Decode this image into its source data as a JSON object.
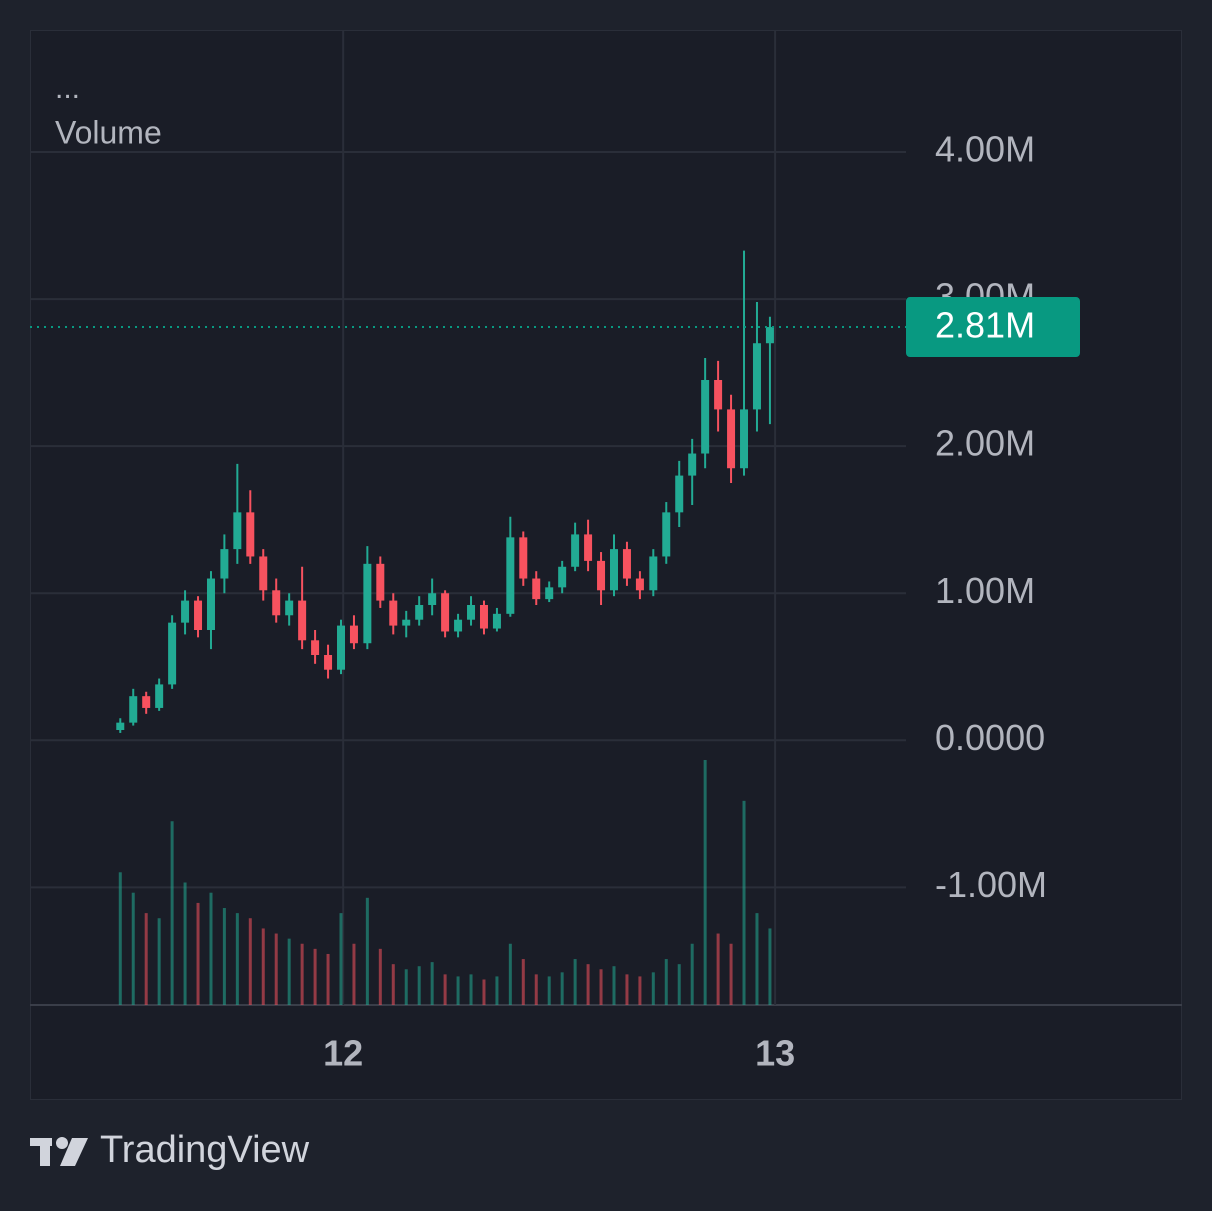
{
  "chart_data": {
    "type": "candlestick",
    "menu": "...",
    "indicator_title": "Volume",
    "brand": "TradingView",
    "x": [
      11.484,
      11.514,
      11.544,
      11.574,
      11.604,
      11.634,
      11.664,
      11.694,
      11.725,
      11.755,
      11.785,
      11.815,
      11.845,
      11.875,
      11.905,
      11.935,
      11.965,
      11.995,
      12.025,
      12.056,
      12.086,
      12.116,
      12.146,
      12.176,
      12.206,
      12.236,
      12.266,
      12.296,
      12.326,
      12.356,
      12.387,
      12.417,
      12.447,
      12.477,
      12.507,
      12.537,
      12.567,
      12.597,
      12.627,
      12.657,
      12.687,
      12.718,
      12.748,
      12.778,
      12.808,
      12.838,
      12.868,
      12.898,
      12.928,
      12.958,
      12.988
    ],
    "open": [
      70000,
      120000,
      300000,
      220000,
      380000,
      800000,
      950000,
      750000,
      1100000,
      1300000,
      1550000,
      1250000,
      1020000,
      850000,
      950000,
      680000,
      580000,
      480000,
      780000,
      660000,
      1200000,
      950000,
      780000,
      820000,
      920000,
      1000000,
      740000,
      820000,
      920000,
      760000,
      860000,
      1380000,
      1100000,
      960000,
      1040000,
      1180000,
      1400000,
      1220000,
      1020000,
      1300000,
      1100000,
      1020000,
      1250000,
      1550000,
      1800000,
      1950000,
      2450000,
      2250000,
      1850000,
      2250000,
      2700000
    ],
    "high": [
      150000,
      350000,
      330000,
      420000,
      850000,
      1020000,
      980000,
      1150000,
      1400000,
      1880000,
      1700000,
      1300000,
      1100000,
      1000000,
      1180000,
      750000,
      650000,
      820000,
      850000,
      1320000,
      1250000,
      1000000,
      880000,
      980000,
      1100000,
      1020000,
      860000,
      980000,
      950000,
      900000,
      1520000,
      1420000,
      1150000,
      1080000,
      1220000,
      1480000,
      1500000,
      1280000,
      1400000,
      1350000,
      1150000,
      1300000,
      1620000,
      1900000,
      2050000,
      2600000,
      2580000,
      2350000,
      3330000,
      2980000,
      2880000
    ],
    "low": [
      50000,
      100000,
      180000,
      200000,
      350000,
      720000,
      700000,
      620000,
      1000000,
      1200000,
      1200000,
      950000,
      800000,
      780000,
      620000,
      520000,
      420000,
      450000,
      620000,
      620000,
      900000,
      720000,
      700000,
      780000,
      850000,
      700000,
      700000,
      780000,
      720000,
      740000,
      840000,
      1050000,
      920000,
      940000,
      1000000,
      1150000,
      1150000,
      920000,
      980000,
      1050000,
      960000,
      980000,
      1200000,
      1450000,
      1600000,
      1850000,
      2100000,
      1750000,
      1800000,
      2100000,
      2150000
    ],
    "close": [
      120000,
      300000,
      220000,
      380000,
      800000,
      950000,
      750000,
      1100000,
      1300000,
      1550000,
      1250000,
      1020000,
      850000,
      950000,
      680000,
      580000,
      480000,
      780000,
      660000,
      1200000,
      950000,
      780000,
      820000,
      920000,
      1000000,
      740000,
      820000,
      920000,
      760000,
      860000,
      1380000,
      1100000,
      960000,
      1040000,
      1180000,
      1400000,
      1220000,
      1020000,
      1300000,
      1100000,
      1020000,
      1250000,
      1550000,
      1800000,
      1950000,
      2450000,
      2250000,
      1850000,
      2250000,
      2700000,
      2810000
    ],
    "volume": [
      130000,
      110000,
      90000,
      85000,
      180000,
      120000,
      100000,
      110000,
      95000,
      90000,
      85000,
      75000,
      70000,
      65000,
      60000,
      55000,
      50000,
      90000,
      60000,
      105000,
      55000,
      40000,
      35000,
      38000,
      42000,
      30000,
      28000,
      30000,
      25000,
      28000,
      60000,
      45000,
      30000,
      28000,
      32000,
      45000,
      40000,
      35000,
      38000,
      30000,
      28000,
      32000,
      45000,
      40000,
      60000,
      240000,
      70000,
      60000,
      200000,
      90000,
      75000
    ],
    "up_color": "#22ab94",
    "down_color": "#f7525f",
    "last_price": {
      "value": 2810000,
      "label": "2.81M"
    },
    "last_price_color": "#089981",
    "xlim": [
      11.275,
      13.303
    ],
    "xticks": [
      12,
      13
    ],
    "ylim": [
      -1800000,
      4830000
    ],
    "yticks": [
      {
        "value": -1000000,
        "label": "-1.00M"
      },
      {
        "value": 0,
        "label": "0.0000"
      },
      {
        "value": 1000000,
        "label": "1.00M"
      },
      {
        "value": 2000000,
        "label": "2.00M"
      },
      {
        "value": 3000000,
        "label": "3.00M"
      },
      {
        "value": 4000000,
        "label": "4.00M"
      }
    ],
    "grid": true
  }
}
